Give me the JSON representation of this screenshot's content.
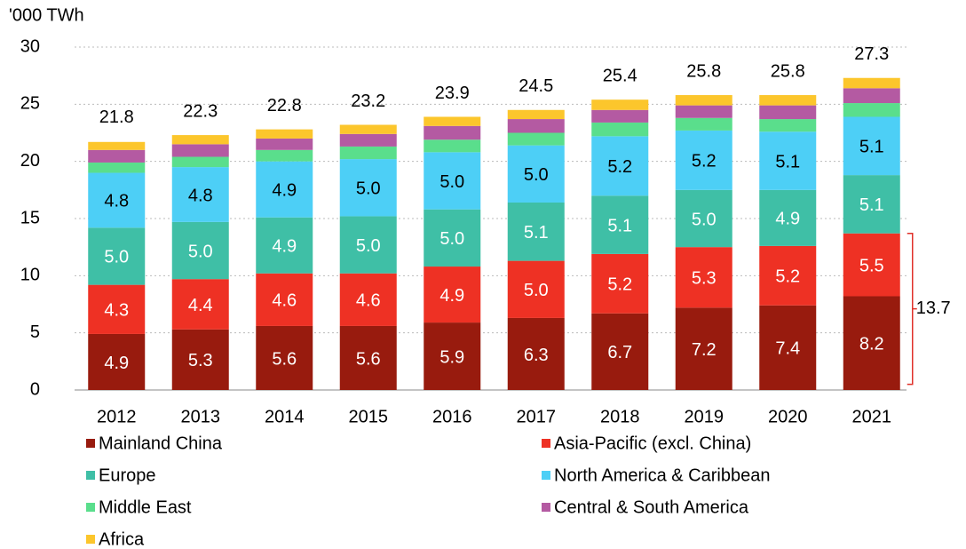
{
  "chart_data": {
    "type": "stacked_bar",
    "y_axis_label": "'000 TWh",
    "categories": [
      "2012",
      "2013",
      "2014",
      "2015",
      "2016",
      "2017",
      "2018",
      "2019",
      "2020",
      "2021"
    ],
    "series": [
      {
        "name": "Mainland China",
        "color": "#981b0e",
        "values": [
          4.9,
          5.3,
          5.6,
          5.6,
          5.9,
          6.3,
          6.7,
          7.2,
          7.4,
          8.2
        ],
        "value_labels": [
          "4.9",
          "5.3",
          "5.6",
          "5.6",
          "5.9",
          "6.3",
          "6.7",
          "7.2",
          "7.4",
          "8.2"
        ]
      },
      {
        "name": "Asia-Pacific (excl. China)",
        "color": "#ee3124",
        "values": [
          4.3,
          4.4,
          4.6,
          4.6,
          4.9,
          5.0,
          5.2,
          5.3,
          5.2,
          5.5
        ],
        "value_labels": [
          "4.3",
          "4.4",
          "4.6",
          "4.6",
          "4.9",
          "5.0",
          "5.2",
          "5.3",
          "5.2",
          "5.5"
        ]
      },
      {
        "name": "Europe",
        "color": "#3fbfa6",
        "values": [
          5.0,
          5.0,
          4.9,
          5.0,
          5.0,
          5.1,
          5.1,
          5.0,
          4.9,
          5.1
        ],
        "value_labels": [
          "5.0",
          "5.0",
          "4.9",
          "5.0",
          "5.0",
          "5.1",
          "5.1",
          "5.0",
          "4.9",
          "5.1"
        ]
      },
      {
        "name": "North America & Caribbean",
        "color": "#4dcff6",
        "values": [
          4.8,
          4.8,
          4.9,
          5.0,
          5.0,
          5.0,
          5.2,
          5.2,
          5.1,
          5.1
        ],
        "value_labels": [
          "4.8",
          "4.8",
          "4.9",
          "5.0",
          "5.0",
          "5.0",
          "5.2",
          "5.2",
          "5.1",
          "5.1"
        ]
      },
      {
        "name": "Middle East",
        "color": "#5ade8c",
        "values": [
          0.9,
          0.9,
          1.0,
          1.1,
          1.1,
          1.1,
          1.2,
          1.1,
          1.1,
          1.2
        ]
      },
      {
        "name": "Central & South America",
        "color": "#b45aa2",
        "values": [
          1.1,
          1.1,
          1.0,
          1.1,
          1.2,
          1.2,
          1.1,
          1.1,
          1.2,
          1.3
        ]
      },
      {
        "name": "Africa",
        "color": "#fcc62c",
        "values": [
          0.7,
          0.8,
          0.8,
          0.8,
          0.8,
          0.8,
          0.9,
          0.9,
          0.9,
          0.9
        ]
      }
    ],
    "totals": [
      21.8,
      22.3,
      22.8,
      23.2,
      23.9,
      24.5,
      25.4,
      25.8,
      25.8,
      27.3
    ],
    "annotation": 13.7,
    "ylim": [
      0,
      30
    ],
    "yticks": [
      0,
      5,
      10,
      15,
      20,
      25,
      30
    ],
    "grid": true
  }
}
